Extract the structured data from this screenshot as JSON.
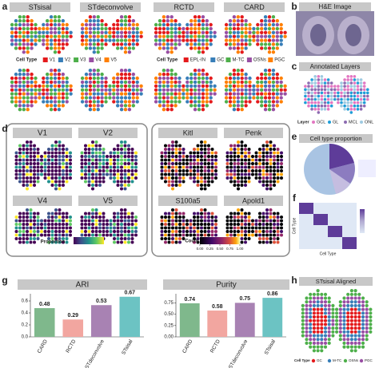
{
  "panel_labels": [
    "a",
    "b",
    "c",
    "d",
    "e",
    "f",
    "g",
    "h"
  ],
  "panel_a": {
    "methods": [
      "STsisal",
      "STdeconvolve",
      "RCTD",
      "CARD"
    ],
    "legend_topics": {
      "title": "Cell Type",
      "items": [
        "V1",
        "V2",
        "V3",
        "V4",
        "V5"
      ],
      "colors": [
        "#e41a1c",
        "#377eb8",
        "#4daf4a",
        "#984ea3",
        "#ff7f00"
      ]
    },
    "legend_cells": {
      "title": "Cell Type",
      "items": [
        "EPL-IN",
        "GC",
        "M-TC",
        "OSNs",
        "PGC"
      ],
      "colors": [
        "#e41a1c",
        "#377eb8",
        "#4daf4a",
        "#984ea3",
        "#ff7f00"
      ]
    }
  },
  "panel_b": {
    "title": "H&E Image"
  },
  "panel_c": {
    "title": "Annotated Layers",
    "legend_title": "Layer",
    "items": [
      "GCL",
      "GL",
      "MCL",
      "ONL"
    ],
    "colors": [
      "#e377c2",
      "#1f9ed8",
      "#8c6bb1",
      "#9ecae1"
    ]
  },
  "panel_d": {
    "topics": [
      "V1",
      "V2",
      "V4",
      "V5"
    ],
    "proportion_label": "Proportion",
    "genes": [
      "Kitl",
      "Penk",
      "S100a5",
      "Apold1"
    ],
    "count_label": "Count",
    "count_ticks": [
      {
        "value": 0,
        "label": "0.00"
      },
      {
        "value": 0.25,
        "label": "0.25"
      },
      {
        "value": 0.5,
        "label": "0.50"
      },
      {
        "value": 0.75,
        "label": "0.75"
      },
      {
        "value": 1,
        "label": "1.00"
      }
    ]
  },
  "panel_e": {
    "title": "Cell type proportion"
  },
  "panel_f": {
    "x_label": "Cell Type",
    "y_label": "Cell Type"
  },
  "panel_h": {
    "title": "STsisal Aligned",
    "legend_title": "Cell Type",
    "items": [
      "GC",
      "M-TC",
      "OSNs",
      "PGC"
    ],
    "colors": [
      "#e41a1c",
      "#377eb8",
      "#4daf4a",
      "#984ea3"
    ]
  },
  "chart_data": [
    {
      "type": "bar",
      "title": "ARI",
      "categories": [
        "CARD",
        "RCTD",
        "STdeconvolve",
        "STsisal"
      ],
      "values": [
        0.48,
        0.29,
        0.53,
        0.67
      ],
      "colors": [
        "#7fb88c",
        "#f2a6a0",
        "#a882b3",
        "#6cc3c3"
      ],
      "ylim": [
        0,
        0.72
      ],
      "yticks": [
        {
          "value": 0,
          "label": "0.0"
        },
        {
          "value": 0.2,
          "label": "0.2"
        },
        {
          "value": 0.4,
          "label": "0.4"
        },
        {
          "value": 0.6,
          "label": "0.6"
        }
      ]
    },
    {
      "type": "bar",
      "title": "Purity",
      "categories": [
        "CARD",
        "RCTD",
        "STdeconvolve",
        "STsisal"
      ],
      "values": [
        0.74,
        0.58,
        0.75,
        0.86
      ],
      "colors": [
        "#7fb88c",
        "#f2a6a0",
        "#a882b3",
        "#6cc3c3"
      ],
      "ylim": [
        0,
        0.95
      ],
      "yticks": [
        {
          "value": 0,
          "label": "0.00"
        },
        {
          "value": 0.25,
          "label": "0.25"
        },
        {
          "value": 0.5,
          "label": "0.50"
        },
        {
          "value": 0.75,
          "label": "0.75"
        }
      ]
    }
  ]
}
